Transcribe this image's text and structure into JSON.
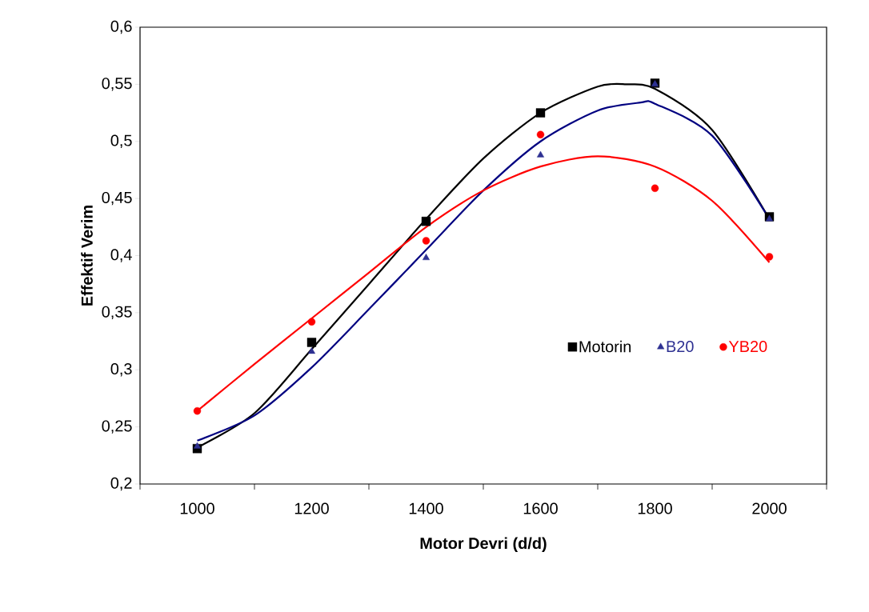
{
  "chart_data": {
    "type": "scatter",
    "xlabel": "Motor Devri (d/d)",
    "ylabel": "Effektif Verim",
    "xlim": [
      900,
      2100
    ],
    "ylim": [
      0.2,
      0.6
    ],
    "xticks": [
      {
        "value": 900,
        "label": null
      },
      1000,
      {
        "value": 1100,
        "label": null
      },
      1200,
      {
        "value": 1300,
        "label": null
      },
      1400,
      {
        "value": 1500,
        "label": null
      },
      1600,
      {
        "value": 1700,
        "label": null
      },
      1800,
      {
        "value": 1900,
        "label": null
      },
      2000,
      {
        "value": 2100,
        "label": null
      }
    ],
    "yticks": [
      {
        "value": 0.2,
        "label": "0,2"
      },
      {
        "value": 0.25,
        "label": "0,25"
      },
      {
        "value": 0.3,
        "label": "0,3"
      },
      {
        "value": 0.35,
        "label": "0,35"
      },
      {
        "value": 0.4,
        "label": "0,4"
      },
      {
        "value": 0.45,
        "label": "0,45"
      },
      {
        "value": 0.5,
        "label": "0,5"
      },
      {
        "value": 0.55,
        "label": "0,55"
      },
      {
        "value": 0.6,
        "label": "0,6"
      }
    ],
    "x": [
      1000,
      1200,
      1400,
      1600,
      1800,
      2000
    ],
    "legend": "bottom right",
    "grid": false,
    "series": [
      {
        "name": "Motorin",
        "marker": "square",
        "color": "#000000",
        "values": [
          0.231,
          0.324,
          0.43,
          0.525,
          0.551,
          0.434
        ]
      },
      {
        "name": "B20",
        "marker": "triangle",
        "color": "#2e3192",
        "values": [
          0.233,
          0.316,
          0.398,
          0.488,
          0.55,
          0.432
        ]
      },
      {
        "name": "YB20",
        "marker": "circle",
        "color": "#ff0000",
        "values": [
          0.264,
          0.342,
          0.413,
          0.506,
          0.459,
          0.399
        ]
      },
      {
        "type": "line",
        "marker": "none",
        "color": "#000000",
        "x": [
          1000,
          1100,
          1200,
          1300,
          1400,
          1500,
          1600,
          1700,
          1750,
          1800,
          1900,
          2000
        ],
        "values": [
          0.232,
          0.262,
          0.318,
          0.375,
          0.432,
          0.485,
          0.525,
          0.548,
          0.55,
          0.546,
          0.51,
          0.432
        ]
      },
      {
        "type": "line",
        "marker": "none",
        "color": "#000080",
        "x": [
          1000,
          1100,
          1200,
          1300,
          1400,
          1500,
          1600,
          1700,
          1775,
          1800,
          1900,
          2000
        ],
        "values": [
          0.238,
          0.26,
          0.302,
          0.353,
          0.405,
          0.457,
          0.5,
          0.527,
          0.534,
          0.533,
          0.505,
          0.432
        ]
      },
      {
        "type": "line",
        "marker": "none",
        "color": "#ff0000",
        "x": [
          1000,
          1100,
          1200,
          1300,
          1400,
          1500,
          1600,
          1700,
          1800,
          1900,
          2000
        ],
        "values": [
          0.264,
          0.305,
          0.345,
          0.385,
          0.425,
          0.457,
          0.478,
          0.487,
          0.478,
          0.448,
          0.394
        ]
      }
    ]
  }
}
